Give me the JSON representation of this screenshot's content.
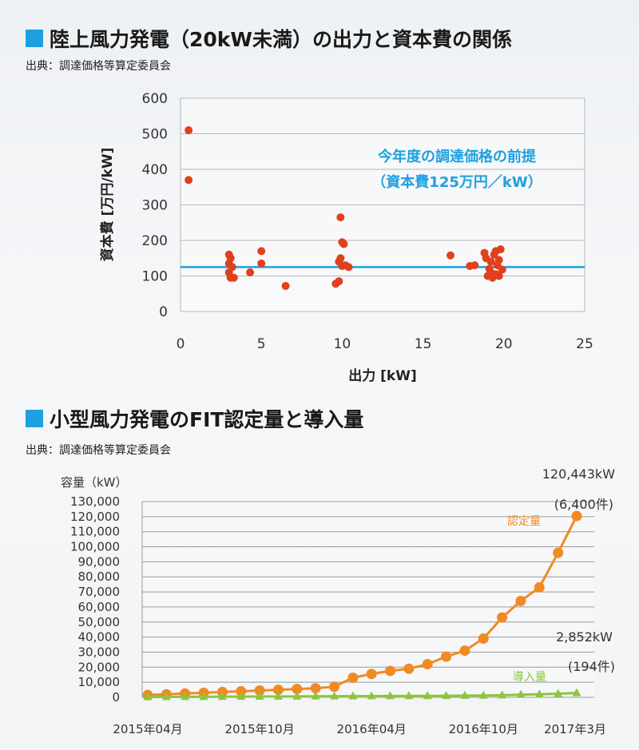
{
  "section1": {
    "title": "陸上風力発電（20kW未満）の出力と資本費の関係",
    "source": "出典：調達価格等算定委員会"
  },
  "section2": {
    "title": "小型風力発電のFIT認定量と導入量",
    "source": "出典：調達価格等算定委員会"
  },
  "colors": {
    "accent_blue": "#1ea0e0",
    "scatter_red": "#e0401c",
    "orange": "#f08a24",
    "green": "#8cc63e"
  },
  "chart_data": [
    {
      "type": "scatter",
      "title": "",
      "xlabel": "出力 [kW]",
      "ylabel": "資本費 [万円/kW]",
      "xlim": [
        0,
        25
      ],
      "ylim": [
        0,
        600
      ],
      "xticks": [
        0,
        5,
        10,
        15,
        20,
        25
      ],
      "yticks": [
        0,
        100,
        200,
        300,
        400,
        500,
        600
      ],
      "grid": true,
      "points": [
        [
          0.5,
          510
        ],
        [
          0.5,
          370
        ],
        [
          3.0,
          160
        ],
        [
          3.1,
          150
        ],
        [
          3.0,
          135
        ],
        [
          3.2,
          125
        ],
        [
          3.0,
          110
        ],
        [
          3.1,
          95
        ],
        [
          3.3,
          95
        ],
        [
          4.3,
          110
        ],
        [
          5.0,
          170
        ],
        [
          5.0,
          135
        ],
        [
          6.5,
          72
        ],
        [
          9.6,
          78
        ],
        [
          9.8,
          85
        ],
        [
          9.9,
          265
        ],
        [
          10.0,
          195
        ],
        [
          10.1,
          190
        ],
        [
          9.9,
          150
        ],
        [
          9.8,
          140
        ],
        [
          10.0,
          128
        ],
        [
          10.2,
          130
        ],
        [
          10.4,
          125
        ],
        [
          16.7,
          158
        ],
        [
          17.9,
          128
        ],
        [
          18.2,
          130
        ],
        [
          18.8,
          165
        ],
        [
          18.9,
          150
        ],
        [
          19.0,
          100
        ],
        [
          19.1,
          120
        ],
        [
          19.2,
          140
        ],
        [
          19.3,
          95
        ],
        [
          19.4,
          160
        ],
        [
          19.5,
          105
        ],
        [
          19.6,
          130
        ],
        [
          19.7,
          145
        ],
        [
          19.8,
          175
        ],
        [
          19.9,
          118
        ],
        [
          19.5,
          170
        ],
        [
          19.2,
          110
        ],
        [
          19.7,
          100
        ]
      ],
      "reference_line": {
        "value": 125,
        "label_line1": "今年度の調達価格の前提",
        "label_line2": "（資本費125万円／kW）"
      }
    },
    {
      "type": "line",
      "title": "",
      "ylabel": "容量（kW）",
      "ylim": [
        0,
        130000
      ],
      "yticks": [
        0,
        10000,
        20000,
        30000,
        40000,
        50000,
        60000,
        70000,
        80000,
        90000,
        100000,
        110000,
        120000,
        130000
      ],
      "ytick_labels": [
        "0",
        "10,000",
        "20,000",
        "30,000",
        "40,000",
        "50,000",
        "60,000",
        "70,000",
        "80,000",
        "90,000",
        "100,000",
        "110,000",
        "120,000",
        "130,000"
      ],
      "x": [
        "2015-04",
        "2015-05",
        "2015-06",
        "2015-07",
        "2015-08",
        "2015-09",
        "2015-10",
        "2015-11",
        "2015-12",
        "2016-01",
        "2016-02",
        "2016-03",
        "2016-04",
        "2016-05",
        "2016-06",
        "2016-07",
        "2016-08",
        "2016-09",
        "2016-10",
        "2016-11",
        "2016-12",
        "2017-01",
        "2017-02",
        "2017-03"
      ],
      "xtick_labels": [
        {
          "index": 0,
          "label": "2015年04月"
        },
        {
          "index": 6,
          "label": "2015年10月"
        },
        {
          "index": 12,
          "label": "2016年04月"
        },
        {
          "index": 18,
          "label": "2016年10月"
        },
        {
          "index": 23,
          "label": "2017年3月"
        }
      ],
      "grid": true,
      "series": [
        {
          "name": "認定量",
          "color": "#f08a24",
          "marker": "circle",
          "values": [
            1500,
            2000,
            2500,
            3000,
            3500,
            4000,
            4500,
            5000,
            5500,
            6000,
            7000,
            13000,
            15500,
            17500,
            19000,
            22000,
            27000,
            31000,
            39000,
            53000,
            64000,
            73000,
            96000,
            120443
          ],
          "end_label_value": "120,443kW",
          "end_label_count": "(6,400件)"
        },
        {
          "name": "導入量",
          "color": "#8cc63e",
          "marker": "triangle",
          "values": [
            200,
            250,
            300,
            350,
            400,
            450,
            500,
            550,
            600,
            650,
            700,
            750,
            800,
            850,
            900,
            950,
            1000,
            1100,
            1200,
            1400,
            1700,
            2000,
            2400,
            2852
          ],
          "end_label_value": "2,852kW",
          "end_label_count": "(194件)"
        }
      ]
    }
  ]
}
